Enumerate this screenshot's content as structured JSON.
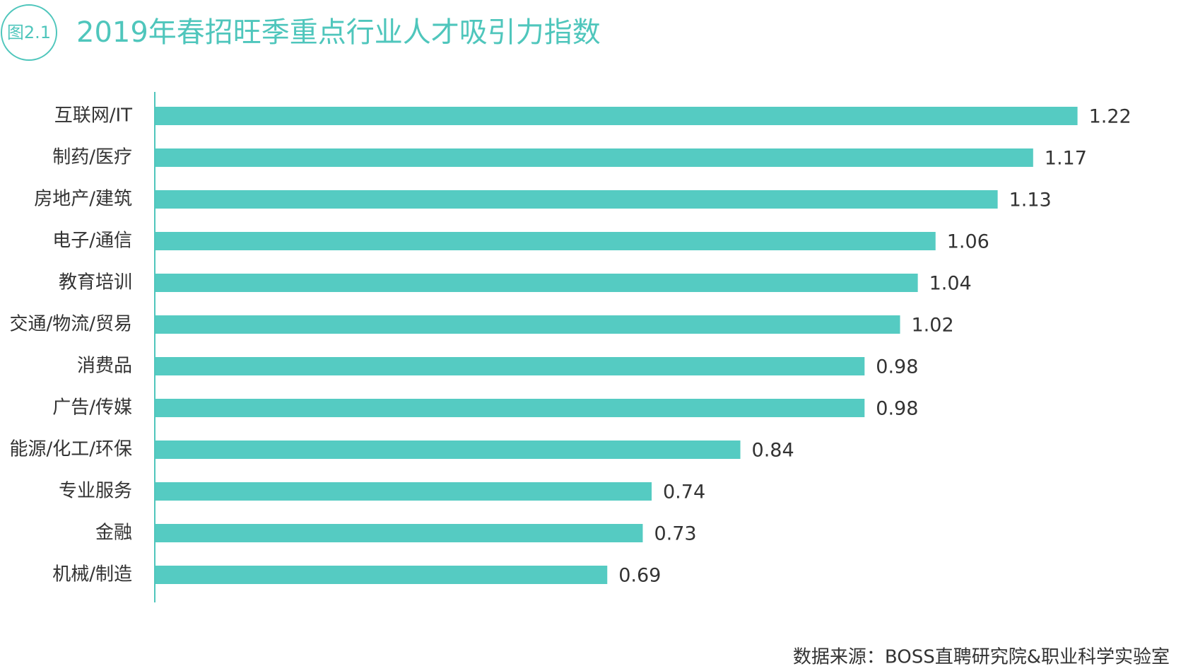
{
  "chart_data": {
    "type": "bar",
    "orientation": "horizontal",
    "badge": "图2.1",
    "title": "2019年春招旺季重点行业人才吸引力指数",
    "source": "数据来源：BOSS直聘研究院&职业科学实验室",
    "categories": [
      "互联网/IT",
      "制药/医疗",
      "房地产/建筑",
      "电子/通信",
      "教育培训",
      "交通/物流/贸易",
      "消费品",
      "广告/传媒",
      "能源/化工/环保",
      "专业服务",
      "金融",
      "机械/制造"
    ],
    "values": [
      1.22,
      1.17,
      1.13,
      1.06,
      1.04,
      1.02,
      0.98,
      0.98,
      0.84,
      0.74,
      0.73,
      0.69
    ],
    "color": "#55cbc2",
    "title_color": "#4fc6bc",
    "xlim": [
      0.18,
      1.3
    ]
  }
}
